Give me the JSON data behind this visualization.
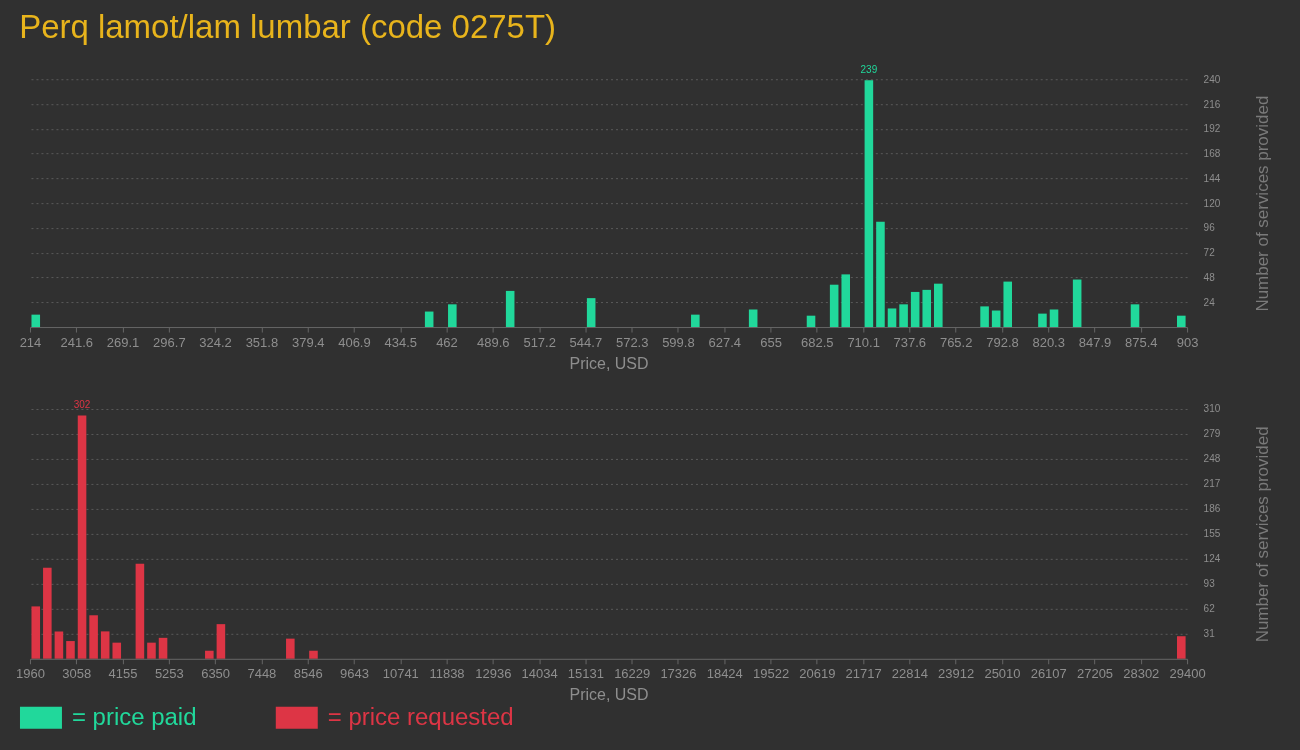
{
  "chart_data": [
    {
      "type": "histogram",
      "title": "Perq lamot/lam lumbar (code 0275T)",
      "xlabel": "Price, USD",
      "ylabel": "Number of services provided",
      "bins": [
        214,
        220.89,
        227.78,
        234.67,
        241.56,
        248.45,
        255.34,
        262.23,
        269.12,
        276.01,
        282.9,
        289.79,
        296.68,
        303.57,
        310.46,
        317.35,
        324.24,
        331.13,
        338.02,
        344.91,
        351.8,
        358.69,
        365.58,
        372.47,
        379.36,
        386.25,
        393.14,
        400.03,
        406.92,
        413.81,
        420.7,
        427.59,
        434.48,
        441.37,
        448.26,
        455.15,
        462.04,
        468.93,
        475.82,
        482.71,
        489.6,
        496.49,
        503.38,
        510.27,
        517.16,
        524.05,
        530.94,
        537.83,
        544.72,
        551.61,
        558.5,
        565.39,
        572.28,
        579.17,
        586.06,
        592.95,
        599.84,
        606.73,
        613.62,
        620.51,
        627.4,
        634.29,
        641.18,
        648.07,
        654.96,
        661.85,
        668.74,
        675.63,
        682.52,
        689.41,
        696.3,
        703.19,
        710.08,
        716.97,
        723.86,
        730.75,
        737.64,
        744.53,
        751.42,
        758.31,
        765.2,
        772.09,
        778.98,
        785.87,
        792.76,
        799.65,
        806.54,
        813.43,
        820.32,
        827.21,
        834.1,
        840.99,
        847.88,
        854.77,
        861.66,
        868.55,
        875.44,
        882.33,
        889.22,
        896.11,
        903
      ],
      "series": [
        {
          "name": "= price paid",
          "color": "#21d89b",
          "values": [
            12,
            0,
            0,
            0,
            0,
            0,
            0,
            0,
            0,
            0,
            0,
            0,
            0,
            0,
            0,
            0,
            0,
            0,
            0,
            0,
            0,
            0,
            0,
            0,
            0,
            0,
            0,
            0,
            0,
            0,
            0,
            0,
            0,
            0,
            15,
            0,
            22,
            0,
            0,
            0,
            0,
            35,
            0,
            0,
            0,
            0,
            0,
            0,
            28,
            0,
            0,
            0,
            0,
            0,
            0,
            0,
            0,
            12,
            0,
            0,
            0,
            0,
            17,
            0,
            0,
            0,
            0,
            11,
            0,
            41,
            51,
            0,
            239,
            102,
            18,
            22,
            34,
            36,
            42,
            0,
            0,
            0,
            20,
            16,
            44,
            0,
            0,
            13,
            17,
            0,
            46,
            0,
            0,
            0,
            0,
            22,
            0,
            0,
            0,
            11
          ],
          "value_labels": [
            null,
            null,
            null,
            null,
            null,
            null,
            null,
            null,
            null,
            null,
            null,
            null,
            null,
            null,
            null,
            null,
            null,
            null,
            null,
            null,
            null,
            null,
            null,
            null,
            null,
            null,
            null,
            null,
            null,
            null,
            null,
            null,
            null,
            null,
            null,
            null,
            null,
            null,
            null,
            null,
            null,
            null,
            null,
            null,
            null,
            null,
            null,
            null,
            null,
            null,
            null,
            null,
            null,
            null,
            null,
            null,
            null,
            null,
            null,
            null,
            null,
            null,
            null,
            null,
            null,
            null,
            null,
            null,
            null,
            null,
            null,
            null,
            "239",
            null,
            null,
            null,
            null,
            null,
            null,
            null,
            null,
            null,
            null,
            null,
            null,
            null,
            null,
            null,
            null,
            null,
            null,
            null,
            null,
            null,
            null,
            null,
            null,
            null,
            null,
            null
          ]
        }
      ],
      "xlim": [
        214,
        903
      ],
      "xticks": [
        214,
        241.6,
        269.1,
        296.7,
        324.2,
        351.8,
        379.4,
        406.9,
        434.5,
        462,
        489.6,
        517.2,
        544.7,
        572.3,
        599.8,
        627.4,
        655,
        682.5,
        710.1,
        737.6,
        765.2,
        792.8,
        820.3,
        847.9,
        875.4,
        903
      ],
      "ylim": [
        0,
        240
      ],
      "yticks": [
        24,
        48,
        72,
        96,
        120,
        144,
        168,
        192,
        216,
        240
      ],
      "grid": "y",
      "legend": "bottom left"
    },
    {
      "type": "histogram",
      "xlabel": "Price, USD",
      "ylabel": "Number of services provided",
      "bins": [
        1960,
        2234.4,
        2508.8,
        2783.2,
        3057.6,
        3332,
        3606.4,
        3880.8,
        4155.2,
        4429.6,
        4704,
        4978.4,
        5252.8,
        5527.2,
        5801.6,
        6076,
        6350.4,
        6624.8,
        6899.2,
        7173.6,
        7448,
        7722.4,
        7996.8,
        8271.2,
        8545.6,
        8820,
        9094.4,
        9368.8,
        9643.2,
        9917.6,
        10192,
        10466.4,
        10740.8,
        11015.2,
        11289.6,
        11564,
        11838.4,
        12112.8,
        12387.2,
        12661.6,
        12936,
        13210.4,
        13484.8,
        13759.2,
        14033.6,
        14308,
        14582.4,
        14856.8,
        15131.2,
        15405.6,
        15680,
        15954.4,
        16228.8,
        16503.2,
        16777.6,
        17052,
        17326.4,
        17600.8,
        17875.2,
        18149.6,
        18424,
        18698.4,
        18972.8,
        19247.2,
        19521.6,
        19796,
        20070.4,
        20344.8,
        20619.2,
        20893.6,
        21168,
        21442.4,
        21716.8,
        21991.2,
        22265.6,
        22540,
        22814.4,
        23088.8,
        23363.2,
        23637.6,
        23912,
        24186.4,
        24460.8,
        24735.2,
        25009.6,
        25284,
        25558.4,
        25832.8,
        26107.2,
        26381.6,
        26656,
        26930.4,
        27204.8,
        27479.2,
        27753.6,
        28028,
        28302.4,
        28576.8,
        28851.2,
        29125.6,
        29400
      ],
      "series": [
        {
          "name": "= price requested",
          "color": "#dd3545",
          "values": [
            65,
            113,
            34,
            22,
            302,
            54,
            34,
            20,
            0,
            118,
            20,
            26,
            0,
            0,
            0,
            10,
            43,
            0,
            0,
            0,
            0,
            0,
            25,
            0,
            10,
            0,
            0,
            0,
            0,
            0,
            0,
            0,
            0,
            0,
            0,
            0,
            0,
            0,
            0,
            0,
            0,
            0,
            0,
            0,
            0,
            0,
            0,
            0,
            0,
            0,
            0,
            0,
            0,
            0,
            0,
            0,
            0,
            0,
            0,
            0,
            0,
            0,
            0,
            0,
            0,
            0,
            0,
            0,
            0,
            0,
            0,
            0,
            0,
            0,
            0,
            0,
            0,
            0,
            0,
            0,
            0,
            0,
            0,
            0,
            0,
            0,
            0,
            0,
            0,
            0,
            0,
            0,
            0,
            0,
            0,
            0,
            0,
            0,
            0,
            28
          ],
          "value_labels": [
            null,
            null,
            null,
            null,
            "302",
            null,
            null,
            null,
            null,
            null,
            null,
            null,
            null,
            null,
            null,
            null,
            null,
            null,
            null,
            null,
            null,
            null,
            null,
            null,
            null,
            null,
            null,
            null,
            null,
            null,
            null,
            null,
            null,
            null,
            null,
            null,
            null,
            null,
            null,
            null,
            null,
            null,
            null,
            null,
            null,
            null,
            null,
            null,
            null,
            null,
            null,
            null,
            null,
            null,
            null,
            null,
            null,
            null,
            null,
            null,
            null,
            null,
            null,
            null,
            null,
            null,
            null,
            null,
            null,
            null,
            null,
            null,
            null,
            null,
            null,
            null,
            null,
            null,
            null,
            null,
            null,
            null,
            null,
            null,
            null,
            null,
            null,
            null,
            null,
            null,
            null,
            null,
            null,
            null,
            null,
            null,
            null,
            null,
            null,
            null
          ]
        }
      ],
      "xlim": [
        1960,
        29400
      ],
      "xticks": [
        1960,
        3058,
        4155,
        5253,
        6350,
        7448,
        8546,
        9643,
        10741,
        11838,
        12936,
        14034,
        15131,
        16229,
        17326,
        18424,
        19522,
        20619,
        21717,
        22814,
        23912,
        25010,
        26107,
        27205,
        28302,
        29400
      ],
      "ylim": [
        0,
        310
      ],
      "yticks": [
        31,
        62,
        93,
        124,
        155,
        186,
        217,
        248,
        279,
        310
      ],
      "grid": "y",
      "legend": "bottom left"
    }
  ]
}
